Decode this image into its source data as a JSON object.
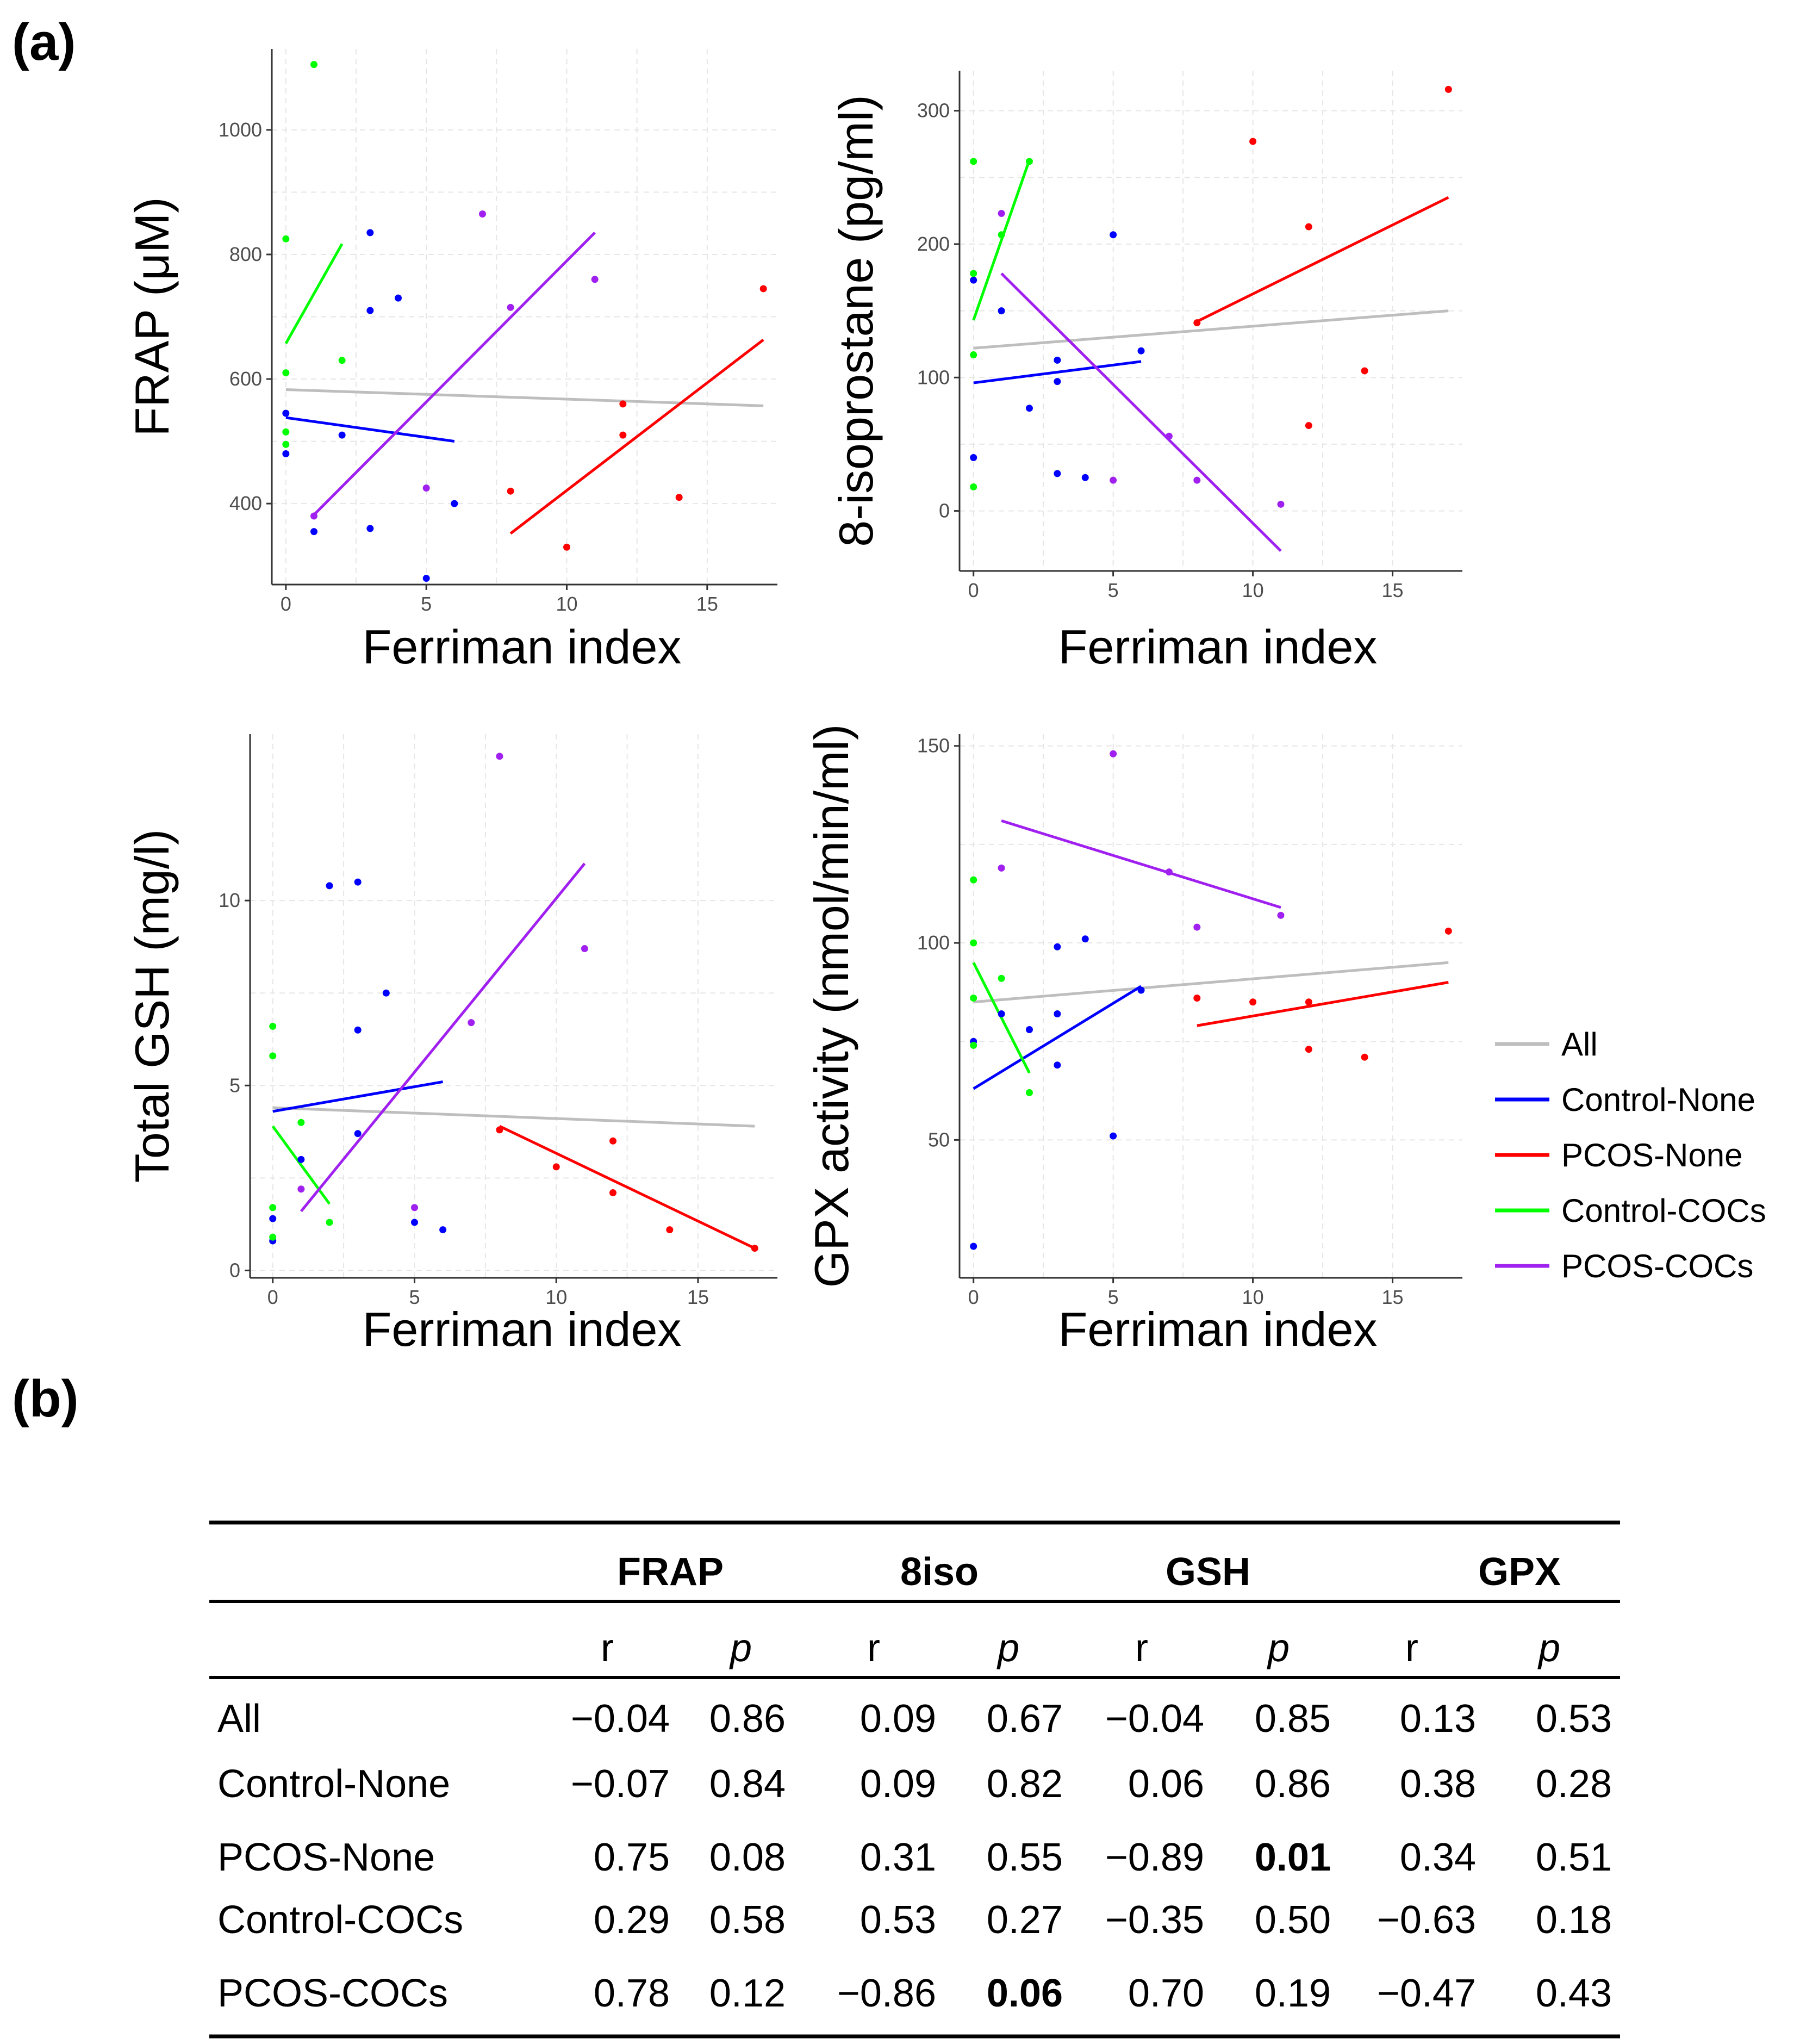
{
  "panel_labels": {
    "a": "(a)",
    "b": "(b)"
  },
  "colors": {
    "All": "#bebebe",
    "Control-None": "#0000ff",
    "PCOS-None": "#ff0000",
    "Control-COCs": "#00ff00",
    "PCOS-COCs": "#a020f0"
  },
  "legend": {
    "items": [
      {
        "label": "All",
        "color": "#bebebe"
      },
      {
        "label": "Control-None",
        "color": "#0000ff"
      },
      {
        "label": "PCOS-None",
        "color": "#ff0000"
      },
      {
        "label": "Control-COCs",
        "color": "#00ff00"
      },
      {
        "label": "PCOS-COCs",
        "color": "#a020f0"
      }
    ]
  },
  "chart_data": [
    {
      "type": "scatter",
      "id": "frap",
      "xlabel": "Ferriman index",
      "ylabel": "FRAP (μM)",
      "xlim": [
        -0.5,
        17.5
      ],
      "ylim": [
        270,
        1130
      ],
      "xticks": [
        0,
        5,
        10,
        15
      ],
      "yticks": [
        400,
        600,
        800,
        1000
      ],
      "points": {
        "Control-None": [
          [
            0,
            545
          ],
          [
            0,
            480
          ],
          [
            1,
            355
          ],
          [
            2,
            510
          ],
          [
            3,
            835
          ],
          [
            3,
            710
          ],
          [
            3,
            360
          ],
          [
            4,
            730
          ],
          [
            5,
            280
          ],
          [
            6,
            400
          ]
        ],
        "PCOS-None": [
          [
            8,
            420
          ],
          [
            10,
            330
          ],
          [
            12,
            560
          ],
          [
            12,
            510
          ],
          [
            14,
            410
          ],
          [
            17,
            745
          ]
        ],
        "Control-COCs": [
          [
            0,
            825
          ],
          [
            0,
            610
          ],
          [
            0,
            515
          ],
          [
            0,
            495
          ],
          [
            1,
            1105
          ],
          [
            2,
            630
          ]
        ],
        "PCOS-COCs": [
          [
            1,
            380
          ],
          [
            5,
            425
          ],
          [
            7,
            865
          ],
          [
            8,
            715
          ],
          [
            11,
            760
          ]
        ]
      },
      "lines": {
        "All": [
          [
            0,
            583
          ],
          [
            17,
            557
          ]
        ],
        "Control-None": [
          [
            0,
            538
          ],
          [
            6,
            500
          ]
        ],
        "PCOS-None": [
          [
            8,
            352
          ],
          [
            17,
            663
          ]
        ],
        "Control-COCs": [
          [
            0,
            657
          ],
          [
            2,
            817
          ]
        ],
        "PCOS-COCs": [
          [
            1,
            382
          ],
          [
            11,
            835
          ]
        ]
      }
    },
    {
      "type": "scatter",
      "id": "8iso",
      "xlabel": "Ferriman index",
      "ylabel": "8-isoprostane (pg/ml)",
      "xlim": [
        -0.5,
        17.5
      ],
      "ylim": [
        -45,
        330
      ],
      "xticks": [
        0,
        5,
        10,
        15
      ],
      "yticks": [
        0,
        100,
        200,
        300
      ],
      "points": {
        "Control-None": [
          [
            0,
            173
          ],
          [
            0,
            40
          ],
          [
            1,
            150
          ],
          [
            2,
            77
          ],
          [
            3,
            113
          ],
          [
            3,
            97
          ],
          [
            3,
            28
          ],
          [
            4,
            25
          ],
          [
            5,
            207
          ],
          [
            6,
            120
          ]
        ],
        "PCOS-None": [
          [
            8,
            141
          ],
          [
            10,
            277
          ],
          [
            12,
            213
          ],
          [
            12,
            64
          ],
          [
            14,
            105
          ],
          [
            17,
            316
          ]
        ],
        "Control-COCs": [
          [
            0,
            262
          ],
          [
            0,
            178
          ],
          [
            0,
            117
          ],
          [
            0,
            18
          ],
          [
            1,
            207
          ],
          [
            2,
            262
          ]
        ],
        "PCOS-COCs": [
          [
            1,
            223
          ],
          [
            5,
            23
          ],
          [
            7,
            56
          ],
          [
            8,
            23
          ],
          [
            11,
            5
          ]
        ]
      },
      "lines": {
        "All": [
          [
            0,
            122
          ],
          [
            17,
            150
          ]
        ],
        "Control-None": [
          [
            0,
            96
          ],
          [
            6,
            112
          ]
        ],
        "PCOS-None": [
          [
            8,
            142
          ],
          [
            17,
            235
          ]
        ],
        "Control-COCs": [
          [
            0,
            143
          ],
          [
            2,
            263
          ]
        ],
        "PCOS-COCs": [
          [
            1,
            178
          ],
          [
            11,
            -30
          ]
        ]
      }
    },
    {
      "type": "scatter",
      "id": "gsh",
      "xlabel": "Ferriman index",
      "ylabel": "Total GSH (mg/l)",
      "xlim": [
        -0.8,
        17.8
      ],
      "ylim": [
        -0.2,
        14.5
      ],
      "xticks": [
        0,
        5,
        10,
        15
      ],
      "yticks": [
        0,
        5,
        10
      ],
      "points": {
        "Control-None": [
          [
            0,
            1.4
          ],
          [
            0,
            0.8
          ],
          [
            1,
            3.0
          ],
          [
            2,
            10.4
          ],
          [
            3,
            10.5
          ],
          [
            3,
            6.5
          ],
          [
            3,
            3.7
          ],
          [
            4,
            7.5
          ],
          [
            5,
            1.3
          ],
          [
            6,
            1.1
          ]
        ],
        "PCOS-None": [
          [
            8,
            3.8
          ],
          [
            10,
            2.8
          ],
          [
            12,
            3.5
          ],
          [
            12,
            2.1
          ],
          [
            14,
            1.1
          ],
          [
            17,
            0.6
          ]
        ],
        "Control-COCs": [
          [
            0,
            6.6
          ],
          [
            0,
            5.8
          ],
          [
            0,
            1.7
          ],
          [
            0,
            0.9
          ],
          [
            1,
            4.0
          ],
          [
            2,
            1.3
          ]
        ],
        "PCOS-COCs": [
          [
            1,
            2.2
          ],
          [
            5,
            1.7
          ],
          [
            7,
            6.7
          ],
          [
            8,
            13.9
          ],
          [
            11,
            8.7
          ]
        ]
      },
      "lines": {
        "All": [
          [
            0,
            4.4
          ],
          [
            17,
            3.9
          ]
        ],
        "Control-None": [
          [
            0,
            4.3
          ],
          [
            6,
            5.1
          ]
        ],
        "PCOS-None": [
          [
            8,
            3.9
          ],
          [
            17,
            0.6
          ]
        ],
        "Control-COCs": [
          [
            0,
            3.9
          ],
          [
            2,
            1.8
          ]
        ],
        "PCOS-COCs": [
          [
            1,
            1.6
          ],
          [
            11,
            11.0
          ]
        ]
      }
    },
    {
      "type": "scatter",
      "id": "gpx",
      "xlabel": "Ferriman index",
      "ylabel": "GPX activity (nmol/min/ml)",
      "xlim": [
        -0.5,
        17.5
      ],
      "ylim": [
        15,
        153
      ],
      "xticks": [
        0,
        5,
        10,
        15
      ],
      "yticks": [
        50,
        100,
        150
      ],
      "points": {
        "Control-None": [
          [
            0,
            75
          ],
          [
            0,
            23
          ],
          [
            1,
            82
          ],
          [
            2,
            78
          ],
          [
            3,
            99
          ],
          [
            3,
            82
          ],
          [
            3,
            69
          ],
          [
            4,
            101
          ],
          [
            5,
            51
          ],
          [
            6,
            88
          ]
        ],
        "PCOS-None": [
          [
            8,
            86
          ],
          [
            10,
            85
          ],
          [
            12,
            85
          ],
          [
            12,
            73
          ],
          [
            14,
            71
          ],
          [
            17,
            103
          ]
        ],
        "Control-COCs": [
          [
            0,
            116
          ],
          [
            0,
            100
          ],
          [
            0,
            86
          ],
          [
            0,
            74
          ],
          [
            1,
            91
          ],
          [
            2,
            62
          ]
        ],
        "PCOS-COCs": [
          [
            1,
            119
          ],
          [
            5,
            148
          ],
          [
            7,
            118
          ],
          [
            8,
            104
          ],
          [
            11,
            107
          ]
        ]
      },
      "lines": {
        "All": [
          [
            0,
            85
          ],
          [
            17,
            95
          ]
        ],
        "Control-None": [
          [
            0,
            63
          ],
          [
            6,
            89
          ]
        ],
        "PCOS-None": [
          [
            8,
            79
          ],
          [
            17,
            90
          ]
        ],
        "Control-COCs": [
          [
            0,
            95
          ],
          [
            2,
            67
          ]
        ],
        "PCOS-COCs": [
          [
            1,
            131
          ],
          [
            11,
            109
          ]
        ]
      }
    },
    {
      "type": "table",
      "id": "correlations",
      "columns": [
        "FRAP",
        "8iso",
        "GSH",
        "GPX"
      ],
      "subheaders": [
        "r",
        "p",
        "r",
        "p",
        "r",
        "p",
        "r",
        "p"
      ],
      "rows": [
        {
          "label": "All",
          "values": [
            "−0.04",
            "0.86",
            "0.09",
            "0.67",
            "−0.04",
            "0.85",
            "0.13",
            "0.53"
          ],
          "bold": []
        },
        {
          "label": "Control-None",
          "values": [
            "−0.07",
            "0.84",
            "0.09",
            "0.82",
            "0.06",
            "0.86",
            "0.38",
            "0.28"
          ],
          "bold": []
        },
        {
          "label": "PCOS-None",
          "values": [
            "0.75",
            "0.08",
            "0.31",
            "0.55",
            "−0.89",
            "0.01",
            "0.34",
            "0.51"
          ],
          "bold": [
            5
          ]
        },
        {
          "label": "Control-COCs",
          "values": [
            "0.29",
            "0.58",
            "0.53",
            "0.27",
            "−0.35",
            "0.50",
            "−0.63",
            "0.18"
          ],
          "bold": []
        },
        {
          "label": "PCOS-COCs",
          "values": [
            "0.78",
            "0.12",
            "−0.86",
            "0.06",
            "0.70",
            "0.19",
            "−0.47",
            "0.43"
          ],
          "bold": [
            3
          ]
        }
      ]
    }
  ]
}
